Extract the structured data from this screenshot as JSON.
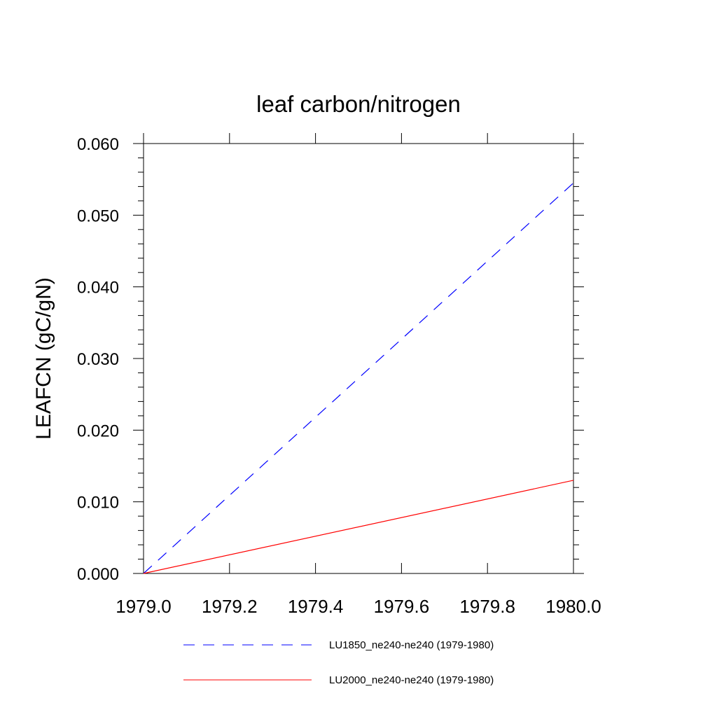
{
  "chart_data": {
    "type": "line",
    "title": "leaf carbon/nitrogen",
    "xlabel": "",
    "ylabel": "LEAFCN  (gC/gN)",
    "xlim": [
      1979.0,
      1980.0
    ],
    "ylim": [
      0.0,
      0.06
    ],
    "x_ticks": [
      1979.0,
      1979.2,
      1979.4,
      1979.6,
      1979.8,
      1980.0
    ],
    "x_tick_labels": [
      "1979.0",
      "1979.2",
      "1979.4",
      "1979.6",
      "1979.8",
      "1980.0"
    ],
    "y_ticks": [
      0.0,
      0.01,
      0.02,
      0.03,
      0.04,
      0.05,
      0.06
    ],
    "y_tick_labels": [
      "0.000",
      "0.010",
      "0.020",
      "0.030",
      "0.040",
      "0.050",
      "0.060"
    ],
    "grid": false,
    "legend_position": "bottom",
    "series": [
      {
        "name": "LU1850_ne240-ne240 (1979-1980)",
        "color": "#0000ff",
        "style": "dashed",
        "x": [
          1979.0,
          1980.0
        ],
        "y": [
          0.0,
          0.0545
        ]
      },
      {
        "name": "LU2000_ne240-ne240 (1979-1980)",
        "color": "#ff0000",
        "style": "solid",
        "x": [
          1979.0,
          1980.0
        ],
        "y": [
          0.0,
          0.013
        ]
      }
    ]
  }
}
